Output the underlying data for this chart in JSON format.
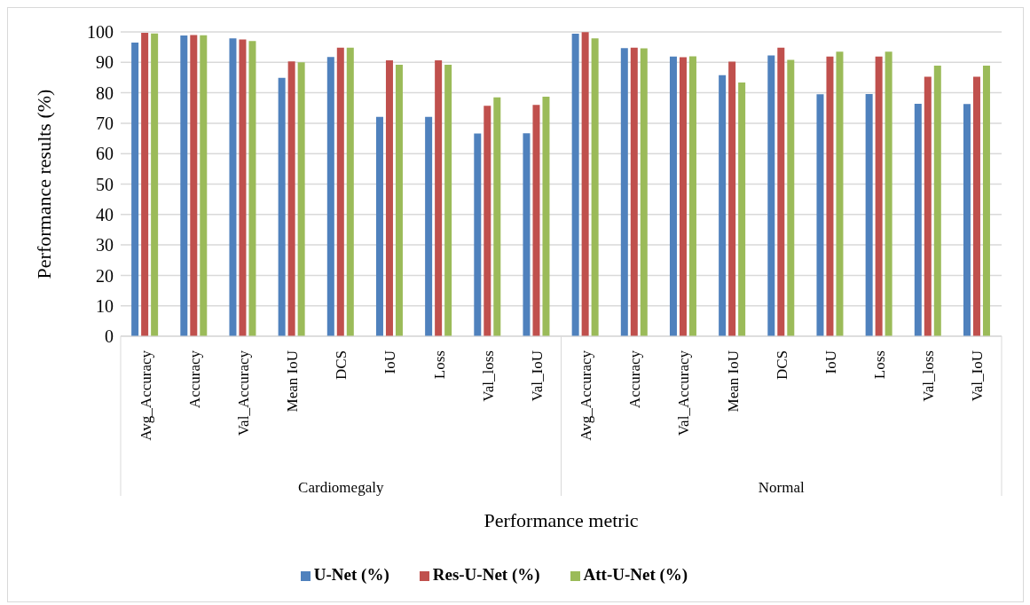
{
  "chart_data": {
    "type": "bar",
    "xlabel": "Performance metric",
    "ylabel": "Performance results (%)",
    "categories": [
      "Avg_Accuracy",
      "Accuracy",
      "Val_Accuracy",
      "Mean IoU",
      "DCS",
      "IoU",
      "Loss",
      "Val_loss",
      "Val_IoU",
      "Avg_Accuracy",
      "Accuracy",
      "Val_Accuracy",
      "Mean IoU",
      "DCS",
      "IoU",
      "Loss",
      "Val_loss",
      "Val_IoU"
    ],
    "annotations": [
      "Cardiomegaly",
      "Normal"
    ],
    "series": [
      {
        "name": "U-Net (%)",
        "color": "#4f81bd",
        "values": [
          96.5,
          98.8,
          97.9,
          84.9,
          91.8,
          72.1,
          72.1,
          66.6,
          66.7,
          99.4,
          94.7,
          91.9,
          85.8,
          92.3,
          79.5,
          79.6,
          76.4,
          76.3
        ]
      },
      {
        "name": "Res-U-Net (%)",
        "color": "#c0504d",
        "values": [
          99.7,
          99.0,
          97.5,
          90.3,
          94.8,
          90.7,
          90.7,
          75.7,
          76.0,
          99.9,
          94.8,
          91.7,
          90.2,
          94.8,
          91.9,
          91.9,
          85.3,
          85.3
        ]
      },
      {
        "name": "Att-U-Net (%)",
        "color": "#9bbb59",
        "values": [
          99.5,
          98.9,
          97.0,
          90.0,
          94.8,
          89.2,
          89.2,
          78.5,
          78.7,
          97.9,
          94.6,
          92.0,
          83.4,
          90.8,
          93.5,
          93.5,
          88.9,
          88.9
        ]
      }
    ],
    "ylim": [
      0,
      100
    ],
    "yticks": [
      0,
      10,
      20,
      30,
      40,
      50,
      60,
      70,
      80,
      90,
      100
    ],
    "grid": "y",
    "legend": "bottom"
  }
}
